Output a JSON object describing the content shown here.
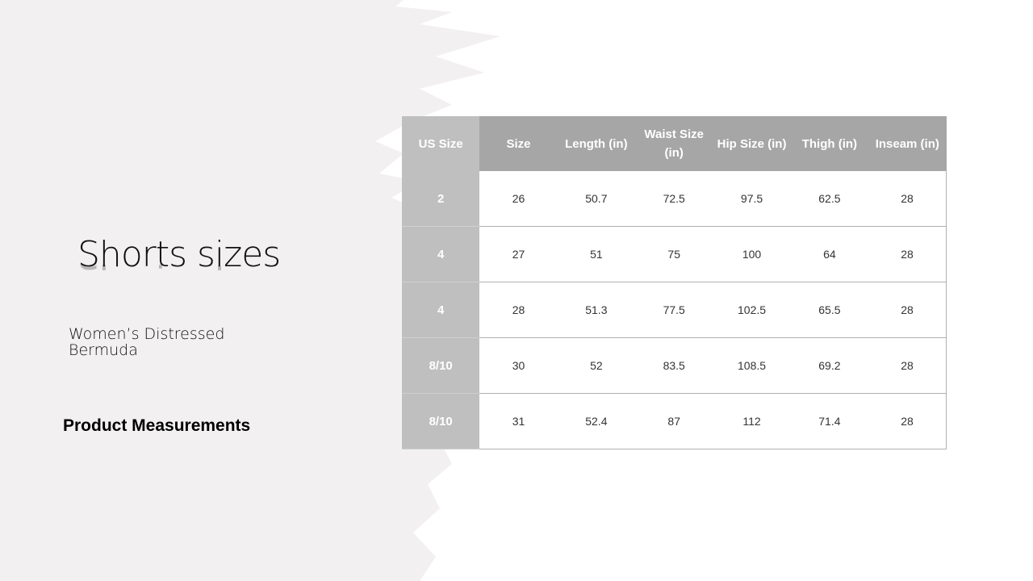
{
  "slide": {
    "title": "Shorts sizes",
    "subtitle": "Women’s Distressed Bermuda",
    "section_label": "Product Measurements"
  },
  "colors": {
    "background": "#f2f0f1",
    "header": "#a6a6a6",
    "first_column": "#bfbfbf"
  },
  "table": {
    "headers": [
      "US Size",
      "Size",
      "Length (in)",
      "Waist Size (in)",
      "Hip Size (in)",
      "Thigh (in)",
      "Inseam (in)"
    ],
    "rows": [
      [
        "2",
        "26",
        "50.7",
        "72.5",
        "97.5",
        "62.5",
        "28"
      ],
      [
        "4",
        "27",
        "51",
        "75",
        "100",
        "64",
        "28"
      ],
      [
        "4",
        "28",
        "51.3",
        "77.5",
        "102.5",
        "65.5",
        "28"
      ],
      [
        "8/10",
        "30",
        "52",
        "83.5",
        "108.5",
        "69.2",
        "28"
      ],
      [
        "8/10",
        "31",
        "52.4",
        "87",
        "112",
        "71.4",
        "28"
      ]
    ]
  }
}
